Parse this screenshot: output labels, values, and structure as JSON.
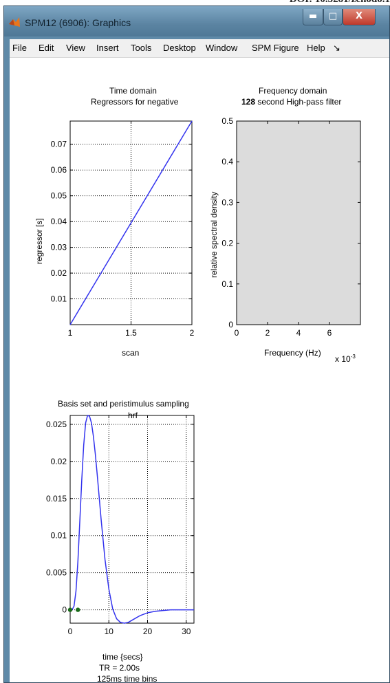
{
  "doi_text": "DOI: 10.5281/zenodo.1",
  "window": {
    "title": "SPM12 (6906): Graphics",
    "min_glyph": "▬",
    "max_glyph": "□",
    "close_glyph": "X"
  },
  "menu": [
    "File",
    "Edit",
    "View",
    "Insert",
    "Tools",
    "Desktop",
    "Window",
    "SPM Figure",
    "Help",
    "↘"
  ],
  "panels": {
    "time": {
      "title1": "Time domain",
      "title2": "Regressors for negative",
      "xlabel": "scan",
      "ylabel": "regressor [s]"
    },
    "freq": {
      "title1": "Frequency domain",
      "title2_bold": "128",
      "title2_rest": " second High-pass filter",
      "xlabel": "Frequency (Hz)",
      "ylabel": "relative spectral density",
      "exponent_base": "x 10",
      "exponent_power": "-3"
    },
    "basis": {
      "title1": "Basis set and peristimulus sampling",
      "title2": "hrf",
      "xlabel": "time {secs}",
      "note1": "TR = 2.00s",
      "note2": "125ms time bins"
    }
  },
  "chart_data": [
    {
      "type": "line",
      "title": "Time domain Regressors for negative",
      "xlabel": "scan",
      "ylabel": "regressor [s]",
      "xlim": [
        1,
        2
      ],
      "ylim": [
        0,
        0.079
      ],
      "xticks": [
        1,
        1.5,
        2
      ],
      "xtick_labels": [
        "1",
        "1.5",
        "2"
      ],
      "yticks": [
        0.01,
        0.02,
        0.03,
        0.04,
        0.05,
        0.06,
        0.07
      ],
      "ytick_labels": [
        "0.01",
        "0.02",
        "0.03",
        "0.04",
        "0.05",
        "0.06",
        "0.07"
      ],
      "grid": true,
      "color": "#3333ee",
      "x": [
        1,
        2
      ],
      "y": [
        0,
        0.079
      ]
    },
    {
      "type": "area",
      "title": "Frequency domain 128 second High-pass filter",
      "xlabel": "Frequency (Hz)",
      "ylabel": "relative spectral density",
      "xlim": [
        0,
        0.008
      ],
      "ylim": [
        0,
        0.5
      ],
      "xticks": [
        0,
        2,
        4,
        6
      ],
      "xtick_labels": [
        "0",
        "2",
        "4",
        "6"
      ],
      "x_multiplier": "x 10^-3",
      "yticks": [
        0,
        0.1,
        0.2,
        0.3,
        0.4,
        0.5
      ],
      "ytick_labels": [
        "0",
        "0.1",
        "0.2",
        "0.3",
        "0.4",
        "0.5"
      ],
      "grid": false,
      "fill_color": "#dcdcdc"
    },
    {
      "type": "line",
      "title": "Basis set and peristimulus sampling hrf",
      "xlabel": "time {secs}",
      "ylabel": "",
      "xlim": [
        0,
        32
      ],
      "ylim": [
        -0.0018,
        0.0262
      ],
      "xticks": [
        0,
        10,
        20,
        30
      ],
      "xtick_labels": [
        "0",
        "10",
        "20",
        "30"
      ],
      "yticks": [
        0,
        0.005,
        0.01,
        0.015,
        0.02,
        0.025
      ],
      "ytick_labels": [
        "0",
        "0.005",
        "0.01",
        "0.015",
        "0.02",
        "0.025"
      ],
      "grid": true,
      "color": "#3333ee",
      "series": [
        {
          "x": [
            0,
            0.5,
            1,
            1.5,
            2,
            2.5,
            3,
            3.5,
            4,
            4.5,
            5,
            5.5,
            6,
            6.5,
            7,
            7.5,
            8,
            9,
            10,
            11,
            12,
            13,
            14,
            15,
            16,
            17,
            18,
            20,
            22,
            24,
            26,
            28,
            30,
            32
          ],
          "y": [
            0,
            0,
            0.0005,
            0.0025,
            0.0065,
            0.012,
            0.0175,
            0.0222,
            0.0252,
            0.0262,
            0.0261,
            0.0252,
            0.0234,
            0.021,
            0.0182,
            0.0152,
            0.0122,
            0.0068,
            0.0028,
            0.0001,
            -0.0012,
            -0.0017,
            -0.0018,
            -0.0017,
            -0.0014,
            -0.0011,
            -0.0008,
            -0.0004,
            -0.0002,
            -0.0001,
            0,
            0,
            0,
            0
          ]
        }
      ],
      "markers": {
        "color": "#1a6b1a",
        "x": [
          0,
          2
        ],
        "y": [
          0,
          0
        ]
      }
    }
  ]
}
